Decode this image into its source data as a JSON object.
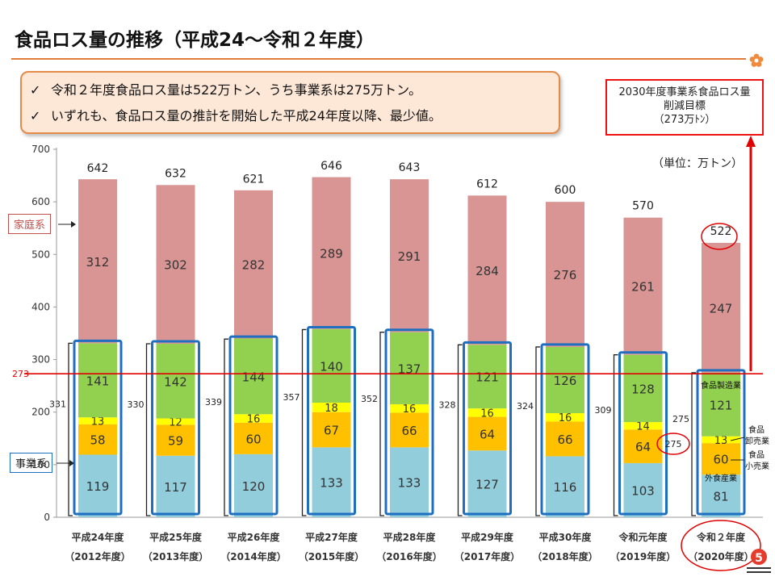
{
  "title": "食品ロス量の推移（平成24～令和２年度）",
  "callout": {
    "items": [
      "令和２年度食品ロス量は522万トン、うち事業系は275万トン。",
      "いずれも、食品ロス量の推計を開始した平成24年度以降、最少値。"
    ],
    "check": "✓"
  },
  "target_box": {
    "line1": "2030年度事業系食品ロス量",
    "line2": "削減目標",
    "line3": "（273万ﾄﾝ）"
  },
  "unit_label": "（単位：万トン）",
  "household_tag": "家庭系",
  "business_tag": "事業系",
  "colors": {
    "household": "#d99594",
    "manufacturing": "#92d050",
    "wholesale": "#ffff00",
    "retail": "#ffc000",
    "food_service": "#92cddc",
    "business_outline": "#1f6fc0",
    "target_line": "#e00000",
    "accent": "#e07b39"
  },
  "chart_data": {
    "type": "bar",
    "stacked": true,
    "ylim": [
      0,
      700
    ],
    "yticks": [
      0,
      100,
      200,
      300,
      400,
      500,
      600,
      700
    ],
    "categories": [
      "平成24年度",
      "平成25年度",
      "平成26年度",
      "平成27年度",
      "平成28年度",
      "平成29年度",
      "平成30年度",
      "令和元年度",
      "令和２年度"
    ],
    "categories_sub": [
      "（2012年度）",
      "（2013年度）",
      "（2014年度）",
      "（2015年度）",
      "（2016年度）",
      "（2017年度）",
      "（2018年度）",
      "（2019年度）",
      "（2020年度）"
    ],
    "series": [
      {
        "key": "food_service",
        "values": [
          119,
          117,
          120,
          133,
          133,
          127,
          116,
          103,
          81
        ]
      },
      {
        "key": "retail",
        "values": [
          58,
          59,
          60,
          67,
          66,
          64,
          66,
          64,
          60
        ]
      },
      {
        "key": "wholesale",
        "values": [
          13,
          12,
          16,
          18,
          16,
          16,
          16,
          14,
          13
        ]
      },
      {
        "key": "manufacturing",
        "values": [
          141,
          142,
          144,
          140,
          137,
          121,
          126,
          128,
          121
        ]
      },
      {
        "key": "household",
        "values": [
          312,
          302,
          282,
          289,
          291,
          284,
          276,
          261,
          247
        ]
      }
    ],
    "totals": [
      642,
      632,
      621,
      646,
      643,
      612,
      600,
      570,
      522
    ],
    "business_totals": [
      331,
      330,
      339,
      357,
      352,
      328,
      324,
      309,
      275
    ],
    "target_value": 273,
    "target_label": "273",
    "segment_labels_2020": {
      "manufacturing": "食品製造業",
      "wholesale": "食品\n卸売業",
      "retail": "食品\n小売業",
      "food_service": "外食産業"
    },
    "page_number": "5"
  }
}
